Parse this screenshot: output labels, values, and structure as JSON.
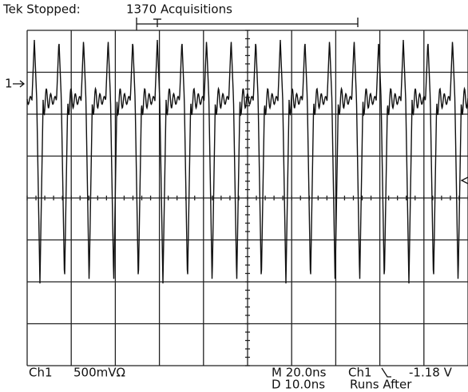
{
  "header": {
    "status": "Tek Stopped:",
    "acquisitions": "1370 Acquisitions"
  },
  "channel_marker": "1",
  "footer": {
    "channel": "Ch1",
    "scale": "500mVΩ",
    "main_time": "M 20.0ns",
    "delay": "D 10.0ns",
    "trigger_source": "Ch1",
    "trigger_level": "-1.18 V",
    "mode": "Runs After"
  }
}
